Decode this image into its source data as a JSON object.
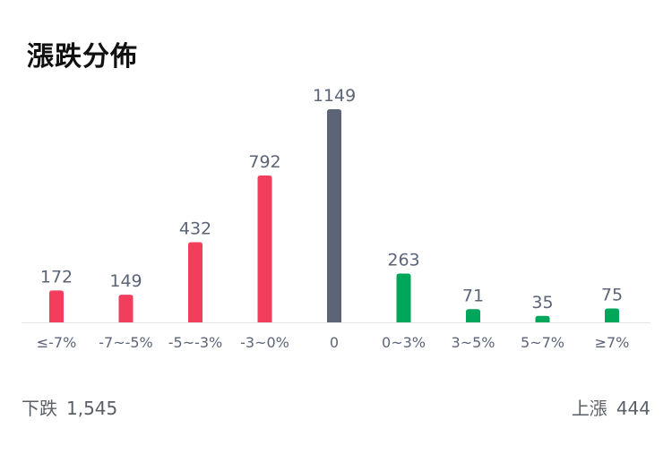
{
  "title": "漲跌分佈",
  "colors": {
    "down": "#f23d5c",
    "flat": "#5c6478",
    "up": "#00a65a",
    "label": "#5c6478",
    "axis": "#e3e3e3"
  },
  "chart_data": {
    "type": "bar",
    "title": "漲跌分佈",
    "categories": [
      "≤-7%",
      "-7~-5%",
      "-5~-3%",
      "-3~0%",
      "0",
      "0~3%",
      "3~5%",
      "5~7%",
      "≥7%"
    ],
    "values": [
      172,
      149,
      432,
      792,
      1149,
      263,
      71,
      35,
      75
    ],
    "groups": [
      "down",
      "down",
      "down",
      "down",
      "flat",
      "up",
      "up",
      "up",
      "up"
    ],
    "ylim": [
      0,
      1149
    ],
    "grid": false,
    "legend": "none"
  },
  "summary": {
    "down_label": "下跌",
    "down_value": "1,545",
    "up_label": "上漲",
    "up_value": "444"
  }
}
